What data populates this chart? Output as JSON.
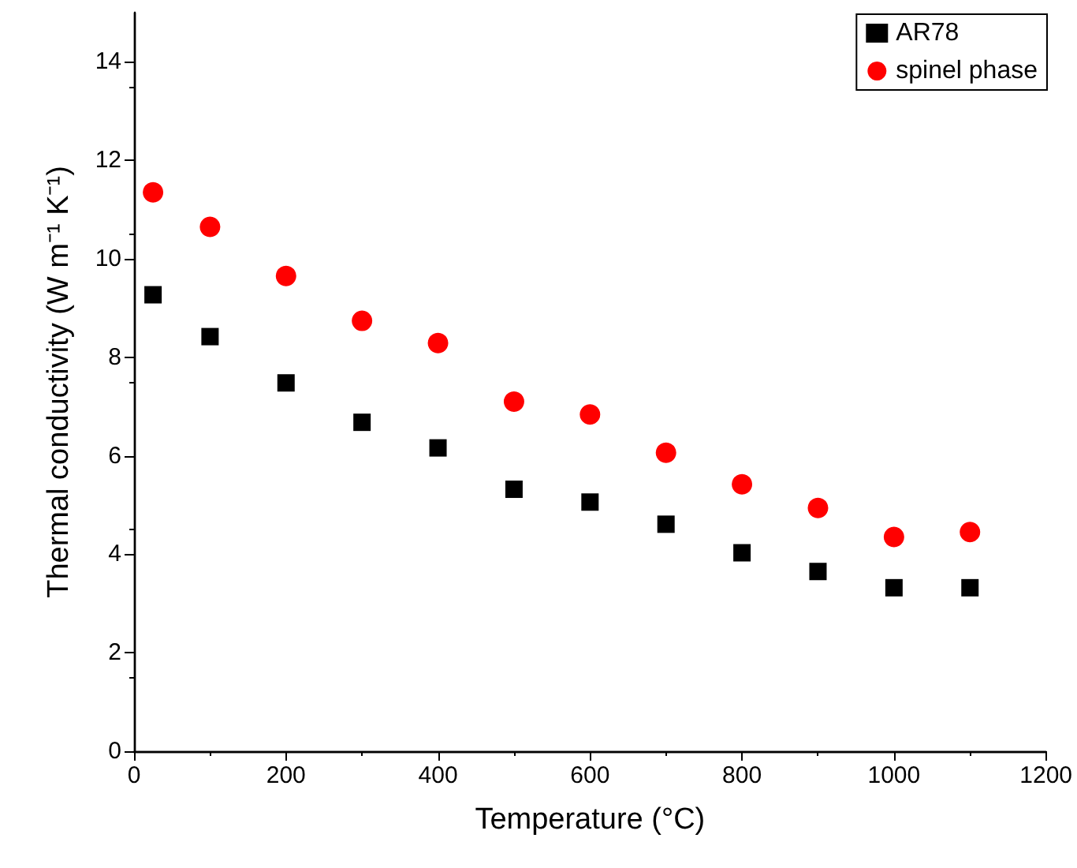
{
  "chart_data": {
    "type": "scatter",
    "xlabel": "Temperature (°C)",
    "ylabel": "Thermal conductivity (W m⁻¹ K⁻¹)",
    "x": [
      25,
      100,
      200,
      300,
      400,
      500,
      600,
      700,
      800,
      900,
      1000,
      1100
    ],
    "series": [
      {
        "name": "AR78",
        "color": "#000000",
        "marker": "square",
        "values": [
          9.27,
          8.42,
          7.48,
          6.68,
          6.16,
          5.32,
          5.06,
          4.61,
          4.03,
          3.65,
          3.32,
          3.32
        ]
      },
      {
        "name": "spinel phase",
        "color": "#ff0000",
        "marker": "circle",
        "values": [
          11.35,
          10.65,
          9.65,
          8.74,
          8.29,
          7.1,
          6.84,
          6.06,
          5.42,
          4.94,
          4.35,
          4.45
        ]
      }
    ],
    "xlim": [
      0,
      1200
    ],
    "xticks": [
      0,
      200,
      400,
      600,
      800,
      1000,
      1200
    ],
    "ylim": [
      0,
      15
    ],
    "yticks": [
      0,
      2,
      4,
      6,
      8,
      10,
      12,
      14
    ],
    "grid": false,
    "legend": "top right"
  }
}
